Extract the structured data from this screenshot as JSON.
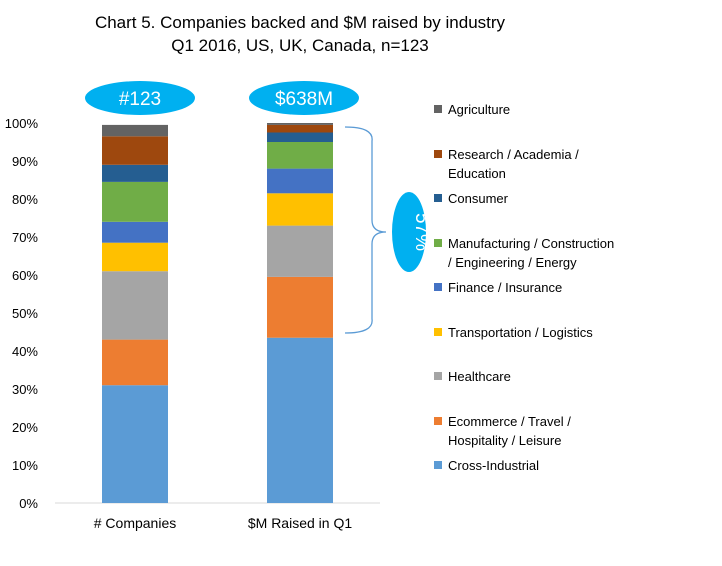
{
  "chart_data": {
    "type": "bar",
    "stacked": true,
    "title": "Chart 5. Companies backed  and $M raised by industry",
    "subtitle": "Q1 2016, US, UK, Canada, n=123",
    "categories": [
      "# Companies",
      "$M Raised in Q1"
    ],
    "ylim": [
      0,
      100
    ],
    "yticks": [
      "0%",
      "10%",
      "20%",
      "30%",
      "40%",
      "50%",
      "60%",
      "70%",
      "80%",
      "90%",
      "100%"
    ],
    "bubbles": [
      "#123",
      "$638M"
    ],
    "series": [
      {
        "name": "Cross-Industrial",
        "color": "#5b9bd5",
        "values": [
          31,
          43.5
        ]
      },
      {
        "name": "Ecommerce / Travel / Hospitality / Leisure",
        "label_lines": [
          "Ecommerce / Travel /",
          "Hospitality / Leisure"
        ],
        "color": "#ed7d31",
        "values": [
          12,
          16
        ]
      },
      {
        "name": "Healthcare",
        "color": "#a5a5a5",
        "values": [
          18,
          13.5
        ]
      },
      {
        "name": "Transportation / Logistics",
        "color": "#ffc000",
        "values": [
          7.5,
          8.5
        ]
      },
      {
        "name": "Finance / Insurance",
        "color": "#4472c4",
        "values": [
          5.5,
          6.5
        ]
      },
      {
        "name": "Manufacturing / Construction / Engineering / Energy",
        "label_lines": [
          "Manufacturing  / Construction",
          "/ Engineering / Energy"
        ],
        "color": "#70ad47",
        "values": [
          10.5,
          7
        ]
      },
      {
        "name": "Consumer",
        "color": "#255e91",
        "values": [
          4.5,
          2.5
        ]
      },
      {
        "name": "Research / Academia / Education",
        "label_lines": [
          "Research / Academia /",
          "Education"
        ],
        "color": "#9e480e",
        "values": [
          7.5,
          2
        ]
      },
      {
        "name": "Agriculture",
        "color": "#636363",
        "values": [
          3,
          0.5
        ]
      }
    ],
    "annotation": {
      "text": "57%",
      "bubble_color": "#00b0f0",
      "bracket_color": "#5b9bd5"
    },
    "legend_position": "right"
  }
}
